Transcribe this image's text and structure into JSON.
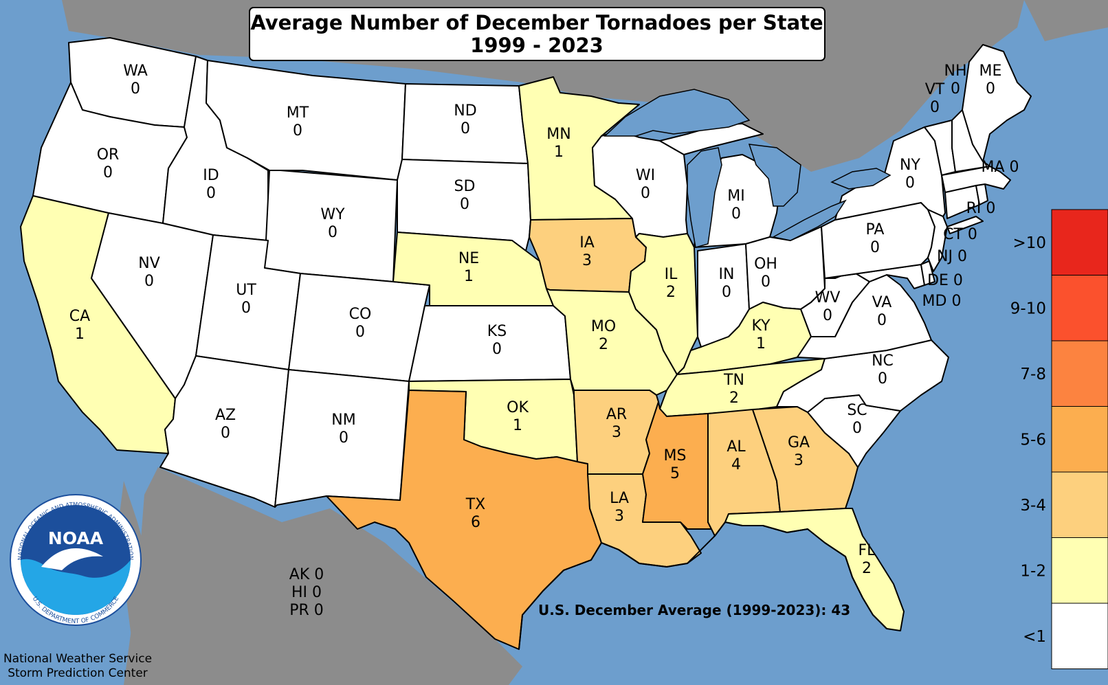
{
  "title": "Average Number of December Tornadoes per State",
  "subtitle": "1999 - 2023",
  "us_average": "U.S. December Average (1999-2023): 43",
  "credit": {
    "line1": "National Weather Service",
    "line2": "Storm Prediction Center"
  },
  "logo": {
    "text": "NOAA",
    "ring_top": "NATIONAL OCEANIC AND ATMOSPHERIC ADMINISTRATION",
    "ring_bottom": "U.S. DEPARTMENT OF COMMERCE"
  },
  "legend": [
    {
      "label": ">10",
      "color": "#e8261c"
    },
    {
      "label": "9-10",
      "color": "#fb512d"
    },
    {
      "label": "7-8",
      "color": "#fc8340"
    },
    {
      "label": "5-6",
      "color": "#fcae4f"
    },
    {
      "label": "3-4",
      "color": "#fdd07e"
    },
    {
      "label": "1-2",
      "color": "#ffffb3"
    },
    {
      "label": "<1",
      "color": "#ffffff"
    }
  ],
  "other_states": [
    {
      "abbr": "AK",
      "value": "0"
    },
    {
      "abbr": "HI",
      "value": "0"
    },
    {
      "abbr": "PR",
      "value": "0"
    }
  ],
  "states": {
    "WA": "0",
    "OR": "0",
    "CA": "1",
    "ID": "0",
    "NV": "0",
    "MT": "0",
    "WY": "0",
    "UT": "0",
    "AZ": "0",
    "CO": "0",
    "NM": "0",
    "ND": "0",
    "SD": "0",
    "NE": "1",
    "KS": "0",
    "OK": "1",
    "TX": "6",
    "MN": "1",
    "IA": "3",
    "MO": "2",
    "AR": "3",
    "LA": "3",
    "WI": "0",
    "IL": "2",
    "MI": "0",
    "IN": "0",
    "OH": "0",
    "KY": "1",
    "TN": "2",
    "MS": "5",
    "AL": "4",
    "GA": "3",
    "FL": "2",
    "SC": "0",
    "NC": "0",
    "VA": "0",
    "WV": "0",
    "PA": "0",
    "NY": "0",
    "VT": "0",
    "NH": "0",
    "ME": "0",
    "MA": "0",
    "RI": "0",
    "CT": "0",
    "NJ": "0",
    "DE": "0",
    "MD": "0"
  }
}
